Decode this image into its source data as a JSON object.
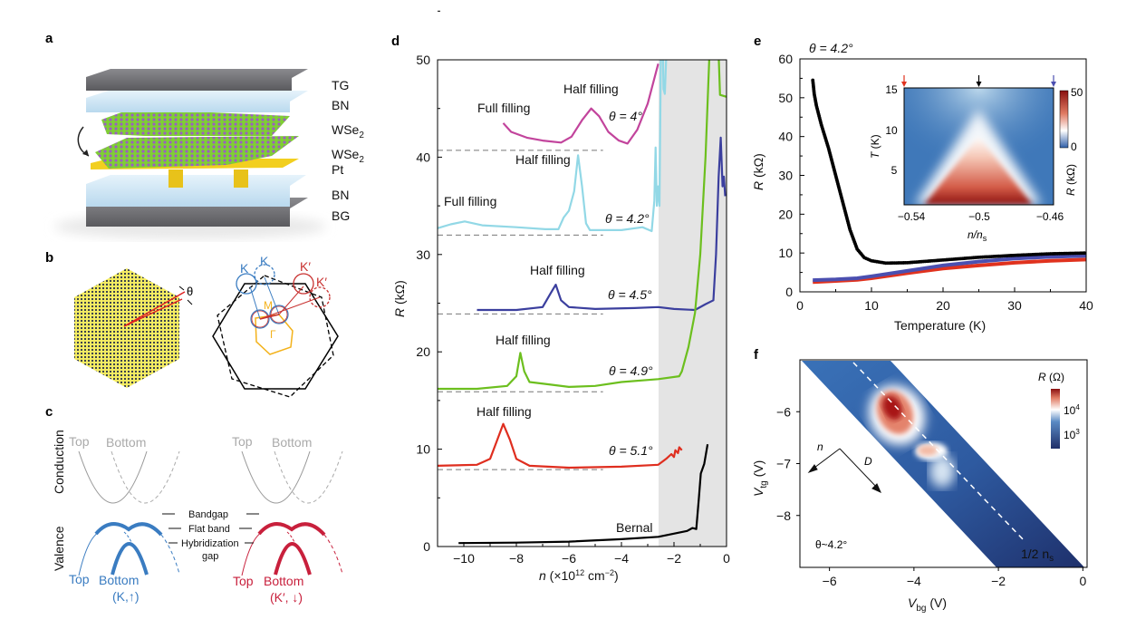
{
  "panel_labels": {
    "a": "a",
    "b": "b",
    "c": "c",
    "d": "d",
    "e": "e",
    "f": "f"
  },
  "panel_a": {
    "layers": [
      {
        "text": "TG",
        "sub": ""
      },
      {
        "text": "BN",
        "sub": ""
      },
      {
        "text": "WSe",
        "sub": "2"
      },
      {
        "text": "WSe",
        "sub": "2"
      },
      {
        "text": "Pt",
        "sub": ""
      },
      {
        "text": "BN",
        "sub": ""
      },
      {
        "text": "BG",
        "sub": ""
      }
    ],
    "colors": {
      "gate": "#6f6f73",
      "bn": "#cfe6f4",
      "wse2_metal": "#8bd13a",
      "wse2_chalc": "#9a5fc0",
      "pt": "#f2cf1f"
    }
  },
  "panel_b": {
    "theta": "θ",
    "K_left": "K",
    "K_left_rot": "K",
    "Kp_right": "K′",
    "Kp_right_rot": "K′",
    "M": "M",
    "Gamma": "Γ",
    "colors": {
      "valley_K": "#3a7cc1",
      "valley_Kp": "#c8302f",
      "mini_bz": "#f3b21b"
    }
  },
  "panel_c": {
    "conduction": "Conduction",
    "valence": "Valence",
    "left": {
      "top": "Top",
      "bottom": "Bottom",
      "valley": "(K,↑)",
      "color": "#3a7cc1"
    },
    "right": {
      "top": "Top",
      "bottom": "Bottom",
      "valley": "(K′, ↓)",
      "color": "#c8203c"
    },
    "conduction_top": "Top",
    "conduction_bottom": "Bottom",
    "bandgap": "Bandgap",
    "flat_band": "Flat band",
    "hybridization": "Hybridization",
    "gap": "gap"
  },
  "chart_data": [
    {
      "panel": "d",
      "type": "line",
      "xlabel_var": "n",
      "xlabel_unit": " (×10",
      "xlabel_exp": "12",
      "xlabel_unit2": " cm",
      "xlabel_exp2": "−2",
      "xlabel_close": ")",
      "ylabel_var": "R",
      "ylabel_unit": " (kΩ)",
      "xlim": [
        -11,
        0
      ],
      "ylim": [
        0,
        50
      ],
      "xticks": [
        "−10",
        "−8",
        "−6",
        "−4",
        "−2",
        "0"
      ],
      "xtick_values": [
        -10,
        -8,
        -6,
        -4,
        -2,
        0
      ],
      "yticks": [
        "0",
        "10",
        "20",
        "30",
        "40",
        "50"
      ],
      "ytick_values": [
        0,
        10,
        20,
        30,
        40,
        50
      ],
      "shaded_region": [
        -2.6,
        0
      ],
      "series": [
        {
          "name": "θ = 4°",
          "color": "#c2449c",
          "baseline": 40.7,
          "points": [
            [
              -8.5,
              43.5
            ],
            [
              -8.2,
              42.6
            ],
            [
              -7.6,
              42.0
            ],
            [
              -7.0,
              41.7
            ],
            [
              -6.3,
              41.5
            ],
            [
              -5.9,
              42.1
            ],
            [
              -5.5,
              43.8
            ],
            [
              -5.15,
              45.0
            ],
            [
              -4.85,
              44.2
            ],
            [
              -4.5,
              42.6
            ],
            [
              -4.1,
              41.7
            ],
            [
              -3.77,
              41.4
            ],
            [
              -3.4,
              42.8
            ],
            [
              -3.0,
              45.5
            ],
            [
              -2.6,
              49.6
            ]
          ]
        },
        {
          "name": "θ = 4.2°",
          "color": "#92d8e6",
          "baseline": 32.0,
          "points": [
            [
              -11,
              32.7
            ],
            [
              -10.5,
              33.1
            ],
            [
              -9.97,
              33.4
            ],
            [
              -9.3,
              33.0
            ],
            [
              -8,
              32.8
            ],
            [
              -6.9,
              32.6
            ],
            [
              -6.4,
              32.6
            ],
            [
              -6.2,
              33.8
            ],
            [
              -6.0,
              34.5
            ],
            [
              -5.8,
              36.5
            ],
            [
              -5.65,
              40.2
            ],
            [
              -5.5,
              37
            ],
            [
              -5.35,
              33.2
            ],
            [
              -5.2,
              32.5
            ],
            [
              -4,
              32.5
            ],
            [
              -3.2,
              32.8
            ],
            [
              -2.85,
              32.4
            ],
            [
              -2.75,
              35.5
            ],
            [
              -2.7,
              41
            ],
            [
              -2.65,
              35
            ],
            [
              -2.6,
              37
            ],
            [
              -2.55,
              35
            ],
            [
              -2.5,
              50.5
            ],
            [
              -2.45,
              55
            ],
            [
              -2.4,
              47
            ],
            [
              -2.35,
              46.5
            ],
            [
              -2.3,
              50
            ]
          ]
        },
        {
          "name": "θ = 4.5°",
          "color": "#3b3f9e",
          "baseline": 23.9,
          "points": [
            [
              -9.5,
              24.3
            ],
            [
              -8,
              24.3
            ],
            [
              -7.0,
              24.6
            ],
            [
              -6.7,
              26.0
            ],
            [
              -6.5,
              26.9
            ],
            [
              -6.3,
              25.3
            ],
            [
              -6.0,
              24.6
            ],
            [
              -5,
              24.4
            ],
            [
              -3.5,
              24.5
            ],
            [
              -2.6,
              24.6
            ],
            [
              -2.0,
              24.4
            ],
            [
              -1.2,
              24.3
            ],
            [
              -0.8,
              24.9
            ],
            [
              -0.5,
              25.3
            ],
            [
              -0.4,
              30
            ],
            [
              -0.3,
              38
            ],
            [
              -0.22,
              42
            ],
            [
              -0.15,
              37
            ],
            [
              -0.1,
              38
            ],
            [
              -0.05,
              36
            ]
          ]
        },
        {
          "name": "θ = 4.9°",
          "color": "#6cbf1e",
          "baseline": 15.9,
          "points": [
            [
              -11,
              16.2
            ],
            [
              -9.5,
              16.2
            ],
            [
              -8.35,
              16.5
            ],
            [
              -8.0,
              17.5
            ],
            [
              -7.85,
              19.9
            ],
            [
              -7.7,
              18.0
            ],
            [
              -7.5,
              16.9
            ],
            [
              -6.9,
              16.7
            ],
            [
              -6,
              16.4
            ],
            [
              -5,
              16.5
            ],
            [
              -4,
              16.9
            ],
            [
              -2.6,
              17.2
            ],
            [
              -1.8,
              17.5
            ],
            [
              -1.7,
              18.0
            ],
            [
              -1.45,
              20.5
            ],
            [
              -1.2,
              24
            ],
            [
              -1.0,
              30
            ],
            [
              -0.8,
              40
            ],
            [
              -0.65,
              50.5
            ],
            [
              -0.45,
              56
            ],
            [
              -0.3,
              50.5
            ],
            [
              -0.25,
              46.4
            ],
            [
              0,
              46.2
            ]
          ]
        },
        {
          "name": "θ = 5.1°",
          "color": "#df2e1f",
          "baseline": 7.9,
          "points": [
            [
              -11,
              8.3
            ],
            [
              -9.5,
              8.4
            ],
            [
              -9.0,
              9.0
            ],
            [
              -8.75,
              10.8
            ],
            [
              -8.5,
              12.6
            ],
            [
              -8.25,
              11.0
            ],
            [
              -8.0,
              9.0
            ],
            [
              -7.5,
              8.3
            ],
            [
              -6,
              8.1
            ],
            [
              -4,
              8.2
            ],
            [
              -2.6,
              8.4
            ],
            [
              -2.3,
              9.0
            ],
            [
              -2.1,
              9.5
            ],
            [
              -2.0,
              9.2
            ],
            [
              -1.95,
              9.9
            ],
            [
              -1.85,
              9.6
            ],
            [
              -1.8,
              10.2
            ],
            [
              -1.7,
              9.9
            ]
          ]
        },
        {
          "name": "Bernal",
          "color": "#000000",
          "points": [
            [
              -10.2,
              0.35
            ],
            [
              -8,
              0.4
            ],
            [
              -6,
              0.5
            ],
            [
              -4,
              0.75
            ],
            [
              -2.6,
              1.0
            ],
            [
              -1.5,
              1.6
            ],
            [
              -1.3,
              1.9
            ],
            [
              -1.15,
              1.8
            ],
            [
              -1.05,
              5.0
            ],
            [
              -0.98,
              7.5
            ],
            [
              -0.85,
              8.5
            ],
            [
              -0.72,
              10.5
            ]
          ]
        }
      ],
      "annotations": {
        "half_filling": "Half filling",
        "full_filling": "Full filling"
      }
    },
    {
      "panel": "e",
      "type": "scatter",
      "title": "θ = 4.2°",
      "xlabel": "Temperature (K)",
      "ylabel_var": "R",
      "ylabel_unit": " (kΩ)",
      "xlim": [
        0,
        40
      ],
      "ylim": [
        0,
        60
      ],
      "xticks": [
        "0",
        "10",
        "20",
        "30",
        "40"
      ],
      "xtick_values": [
        0,
        10,
        20,
        30,
        40
      ],
      "yticks": [
        "0",
        "10",
        "20",
        "30",
        "40",
        "50",
        "60"
      ],
      "ytick_values": [
        0,
        10,
        20,
        30,
        40,
        50,
        60
      ],
      "series": [
        {
          "color": "#000000",
          "points": [
            [
              1.8,
              54.5
            ],
            [
              2,
              51
            ],
            [
              2.3,
              48
            ],
            [
              3,
              43
            ],
            [
              4,
              37
            ],
            [
              5,
              30
            ],
            [
              6,
              23
            ],
            [
              7,
              16
            ],
            [
              8,
              11
            ],
            [
              9,
              8.8
            ],
            [
              10,
              8
            ],
            [
              12,
              7.4
            ],
            [
              15,
              7.5
            ],
            [
              20,
              8.2
            ],
            [
              25,
              8.9
            ],
            [
              30,
              9.4
            ],
            [
              35,
              9.8
            ],
            [
              40,
              10
            ]
          ]
        },
        {
          "color": "#4b4fb0",
          "points": [
            [
              1.8,
              3
            ],
            [
              5,
              3.2
            ],
            [
              8,
              3.5
            ],
            [
              10,
              4
            ],
            [
              15,
              5.4
            ],
            [
              20,
              6.8
            ],
            [
              25,
              7.8
            ],
            [
              30,
              8.6
            ],
            [
              35,
              9
            ],
            [
              40,
              9.3
            ]
          ]
        },
        {
          "color": "#e0321e",
          "points": [
            [
              1.8,
              2.5
            ],
            [
              5,
              2.8
            ],
            [
              8,
              3.1
            ],
            [
              10,
              3.5
            ],
            [
              15,
              4.8
            ],
            [
              20,
              6
            ],
            [
              25,
              6.8
            ],
            [
              30,
              7.5
            ],
            [
              35,
              8
            ],
            [
              40,
              8.3
            ]
          ]
        }
      ],
      "inset": {
        "type": "heatmap",
        "xlabel_var": "n/n",
        "xlabel_sub": "s",
        "ylabel_var": "T",
        "ylabel_unit": " (K)",
        "xticks": [
          "−0.54",
          "−0.5",
          "−0.46"
        ],
        "yticks": [
          "5",
          "10",
          "15"
        ],
        "xlim": [
          -0.54,
          -0.46
        ],
        "ylim": [
          0,
          15
        ],
        "colorbar_label_var": "R",
        "colorbar_label_unit": " (kΩ)",
        "colorbar_ticks": [
          "0",
          "50"
        ],
        "colormap": [
          "#2f5fa8",
          "#ffffff",
          "#a81818"
        ],
        "arrow_colors": [
          "#e0321e",
          "#000000",
          "#4b4fb0"
        ],
        "arrow_positions": [
          -0.54,
          -0.5,
          -0.46
        ]
      }
    },
    {
      "panel": "f",
      "type": "heatmap",
      "xlabel_var": "V",
      "xlabel_sub": "bg",
      "xlabel_unit": " (V)",
      "ylabel_var": "V",
      "ylabel_sub": "tg",
      "ylabel_unit": " (V)",
      "xlim": [
        -6.7,
        0.1
      ],
      "ylim": [
        -9,
        -5
      ],
      "xticks": [
        "−6",
        "−4",
        "−2",
        "0"
      ],
      "xtick_values": [
        -6,
        -4,
        -2,
        0
      ],
      "yticks": [
        "−6",
        "−7",
        "−8"
      ],
      "ytick_values": [
        -6,
        -7,
        -8
      ],
      "colorbar_label_var": "R",
      "colorbar_label_unit": " (Ω)",
      "colorbar_ticks": [
        {
          "base": "10",
          "exp": "4"
        },
        {
          "base": "10",
          "exp": "3"
        }
      ],
      "colormap": [
        "#22336e",
        "#ffffff",
        "#a81818"
      ],
      "annotations": {
        "n": "n",
        "D": "D",
        "theta": "θ~4.2°",
        "half_ns": "1/2 n",
        "half_ns_sub": "s"
      }
    }
  ]
}
